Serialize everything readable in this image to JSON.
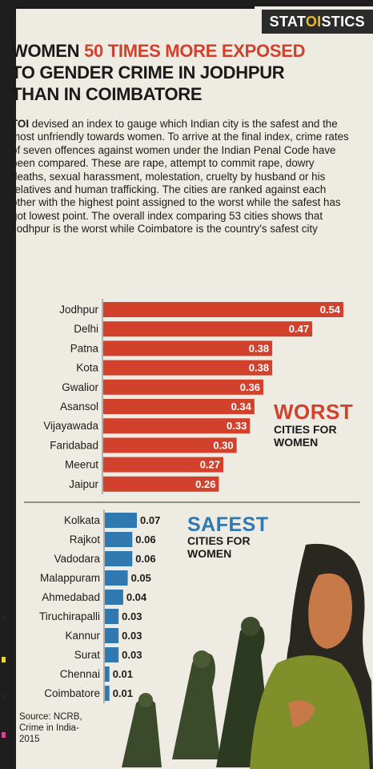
{
  "kicker": {
    "part1": "STAT",
    "part2": "OI",
    "part3": "STICS"
  },
  "headline": {
    "lead": "WOMEN ",
    "highlight": "50 TIMES MORE EXPOSED",
    "line2": "TO GENDER CRIME IN JODHPUR",
    "line3": "THAN IN COIMBATORE"
  },
  "intro": {
    "lead": "TOI",
    "body": " devised an index to gauge which Indian city is the safest and the most unfriendly towards women. To arrive at the final index, crime rates of seven offences against women under the Indian Penal Code have been compared. These are rape, attempt to commit rape, dowry deaths, sexual harassment, molestation, cruelty by husband or his relatives and human trafficking. The cities are ranked against each other with the highest point assigned to the worst while the safest has got lowest point. The overall index comparing 53 cities shows that Jodhpur is the worst while Coimbatore is the country's safest city"
  },
  "worst_label": {
    "word": "WORST",
    "sub": "CITIES FOR WOMEN"
  },
  "safest_label": {
    "word": "SAFEST",
    "sub": "CITIES FOR WOMEN"
  },
  "source": "Source: NCRB, Crime in India-2015",
  "colors": {
    "worst": "#d2412b",
    "safest": "#2f78b0",
    "worst_text": "#d2412b",
    "safest_text": "#2f78b0"
  },
  "chart_data": [
    {
      "type": "bar",
      "orientation": "horizontal",
      "categories": [
        "Jodhpur",
        "Delhi",
        "Patna",
        "Kota",
        "Gwalior",
        "Asansol",
        "Vijayawada",
        "Faridabad",
        "Meerut",
        "Jaipur"
      ],
      "values": [
        0.54,
        0.47,
        0.38,
        0.38,
        0.36,
        0.34,
        0.33,
        0.3,
        0.27,
        0.26
      ],
      "labels": [
        "0.54",
        "0.47",
        "0.38",
        "0.38",
        "0.36",
        "0.34",
        "0.33",
        "0.30",
        "0.27",
        "0.26"
      ],
      "label_position": "inside-end"
    },
    {
      "type": "bar",
      "orientation": "horizontal",
      "categories": [
        "Kolkata",
        "Rajkot",
        "Vadodara",
        "Malappuram",
        "Ahmedabad",
        "Tiruchirapalli",
        "Kannur",
        "Surat",
        "Chennai",
        "Coimbatore"
      ],
      "values": [
        0.07,
        0.06,
        0.06,
        0.05,
        0.04,
        0.03,
        0.03,
        0.03,
        0.01,
        0.01
      ],
      "labels": [
        "0.07",
        "0.06",
        "0.06",
        "0.05",
        "0.04",
        "0.03",
        "0.03",
        "0.03",
        "0.01",
        "0.01"
      ],
      "label_position": "outside-end"
    }
  ]
}
